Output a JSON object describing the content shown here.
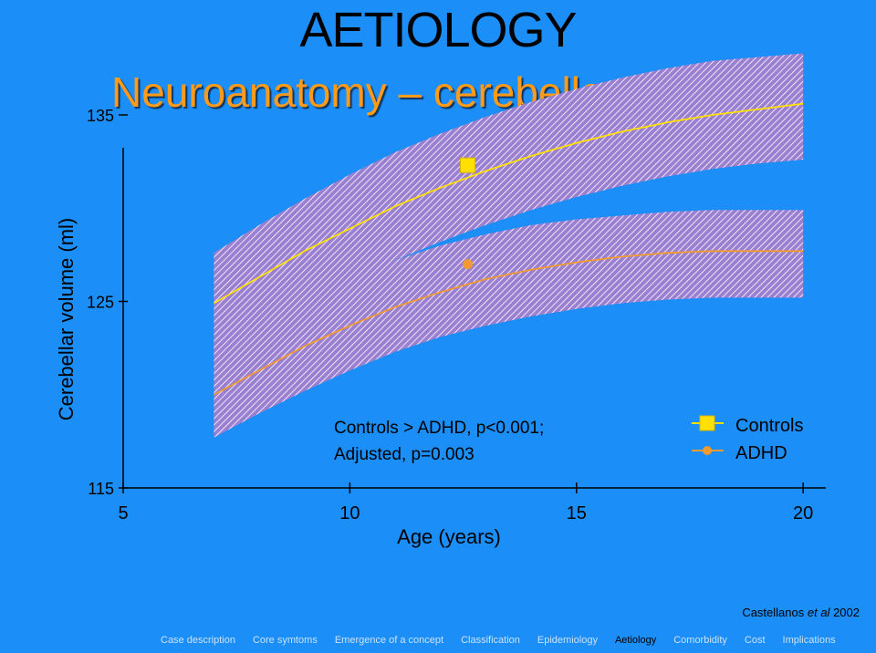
{
  "slide": {
    "title": "AETIOLOGY",
    "subtitle": "Neuroanatomy – cerebellar volume"
  },
  "citation": {
    "authors": "Castellanos",
    "etal": "et al",
    "year": "2002"
  },
  "nav": {
    "items": [
      "Case description",
      "Core symtoms",
      "Emergence of a concept",
      "Classification",
      "Epidemiology",
      "Aetiology",
      "Comorbidity",
      "Cost",
      "Implications"
    ],
    "active_index": 5
  },
  "colors": {
    "background": "#1b8ef7",
    "controls": "#ffe000",
    "adhd": "#f09a30",
    "band": "#9b7fd0",
    "hatch": "#ffffff"
  },
  "chart_data": {
    "type": "line",
    "xlabel": "Age (years)",
    "ylabel": "Cerebellar volume (ml)",
    "xlim": [
      5,
      20.5
    ],
    "ylim": [
      115,
      135
    ],
    "x_ticks": [
      "5",
      "10",
      "15",
      "20"
    ],
    "y_ticks": [
      "115",
      "125",
      "135"
    ],
    "annotation": [
      "Controls > ADHD, p<0.001;",
      "Adjusted, p=0.003"
    ],
    "legend_position": "right",
    "series": [
      {
        "name": "Controls",
        "marker": "square",
        "x": [
          7,
          8,
          9,
          10,
          11,
          12,
          13,
          14,
          15,
          16,
          17,
          18,
          19,
          20
        ],
        "y": [
          124.9,
          126.3,
          127.7,
          128.9,
          130.1,
          131.1,
          132.0,
          132.8,
          133.5,
          134.1,
          134.6,
          135.0,
          135.3,
          135.6
        ],
        "upper": [
          127.6,
          129.1,
          130.5,
          131.8,
          133.0,
          134.0,
          134.9,
          135.7,
          136.4,
          137.0,
          137.5,
          137.9,
          138.1,
          138.3
        ],
        "lower": [
          122.3,
          123.6,
          124.9,
          126.1,
          127.2,
          128.2,
          129.1,
          129.9,
          130.6,
          131.2,
          131.7,
          132.1,
          132.4,
          132.6
        ],
        "mean_point": {
          "x": 12.6,
          "y": 132.3
        }
      },
      {
        "name": "ADHD",
        "marker": "circle",
        "x": [
          7,
          8,
          9,
          10,
          11,
          12,
          13,
          14,
          15,
          16,
          17,
          18,
          19,
          20
        ],
        "y": [
          120.0,
          121.3,
          122.6,
          123.7,
          124.7,
          125.5,
          126.2,
          126.7,
          127.1,
          127.4,
          127.6,
          127.7,
          127.7,
          127.7
        ],
        "upper": [
          122.7,
          124.0,
          125.2,
          126.3,
          127.2,
          128.0,
          128.6,
          129.1,
          129.4,
          129.6,
          129.8,
          129.9,
          129.9,
          129.9
        ],
        "lower": [
          117.7,
          119.0,
          120.2,
          121.3,
          122.3,
          123.1,
          123.7,
          124.2,
          124.6,
          124.9,
          125.1,
          125.2,
          125.2,
          125.2
        ],
        "mean_point": {
          "x": 12.6,
          "y": 127.0
        }
      }
    ]
  }
}
